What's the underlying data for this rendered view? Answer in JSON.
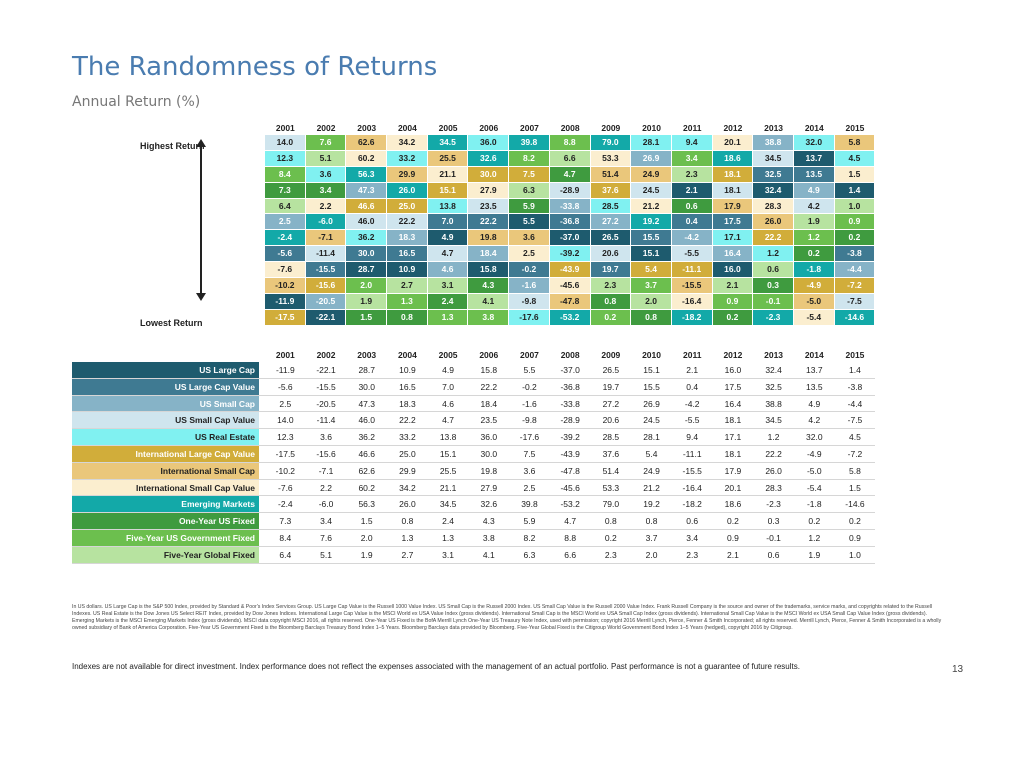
{
  "title": "The Randomness of Returns",
  "subtitle": "Annual Return (%)",
  "years": [
    "2001",
    "2002",
    "2003",
    "2004",
    "2005",
    "2006",
    "2007",
    "2008",
    "2009",
    "2010",
    "2011",
    "2012",
    "2013",
    "2014",
    "2015"
  ],
  "highest_label": "Highest Return",
  "lowest_label": "Lowest Return",
  "assets": [
    {
      "key": "usl",
      "name": "US Large Cap",
      "color": "#1e5b6e",
      "text": "#ffffff",
      "values": [
        "-11.9",
        "-22.1",
        "28.7",
        "10.9",
        "4.9",
        "15.8",
        "5.5",
        "-37.0",
        "26.5",
        "15.1",
        "2.1",
        "16.0",
        "32.4",
        "13.7",
        "1.4"
      ]
    },
    {
      "key": "uslv",
      "name": "US Large Cap Value",
      "color": "#3f7a92",
      "text": "#ffffff",
      "values": [
        "-5.6",
        "-15.5",
        "30.0",
        "16.5",
        "7.0",
        "22.2",
        "-0.2",
        "-36.8",
        "19.7",
        "15.5",
        "0.4",
        "17.5",
        "32.5",
        "13.5",
        "-3.8"
      ]
    },
    {
      "key": "uss",
      "name": "US Small Cap",
      "color": "#86b3c7",
      "text": "#ffffff",
      "values": [
        "2.5",
        "-20.5",
        "47.3",
        "18.3",
        "4.6",
        "18.4",
        "-1.6",
        "-33.8",
        "27.2",
        "26.9",
        "-4.2",
        "16.4",
        "38.8",
        "4.9",
        "-4.4"
      ]
    },
    {
      "key": "ussv",
      "name": "US Small Cap Value",
      "color": "#cfe5ee",
      "text": "#222222",
      "values": [
        "14.0",
        "-11.4",
        "46.0",
        "22.2",
        "4.7",
        "23.5",
        "-9.8",
        "-28.9",
        "20.6",
        "24.5",
        "-5.5",
        "18.1",
        "34.5",
        "4.2",
        "-7.5"
      ]
    },
    {
      "key": "usre",
      "name": "US Real Estate",
      "color": "#80f1f1",
      "text": "#222222",
      "values": [
        "12.3",
        "3.6",
        "36.2",
        "33.2",
        "13.8",
        "36.0",
        "-17.6",
        "-39.2",
        "28.5",
        "28.1",
        "9.4",
        "17.1",
        "1.2",
        "32.0",
        "4.5"
      ]
    },
    {
      "key": "ilv",
      "name": "International Large Cap Value",
      "color": "#d1ad3a",
      "text": "#ffffff",
      "values": [
        "-17.5",
        "-15.6",
        "46.6",
        "25.0",
        "15.1",
        "30.0",
        "7.5",
        "-43.9",
        "37.6",
        "5.4",
        "-11.1",
        "18.1",
        "22.2",
        "-4.9",
        "-7.2"
      ]
    },
    {
      "key": "is",
      "name": "International Small Cap",
      "color": "#eac77b",
      "text": "#222222",
      "values": [
        "-10.2",
        "-7.1",
        "62.6",
        "29.9",
        "25.5",
        "19.8",
        "3.6",
        "-47.8",
        "51.4",
        "24.9",
        "-15.5",
        "17.9",
        "26.0",
        "-5.0",
        "5.8"
      ]
    },
    {
      "key": "isv",
      "name": "International Small Cap Value",
      "color": "#fbeecf",
      "text": "#222222",
      "values": [
        "-7.6",
        "2.2",
        "60.2",
        "34.2",
        "21.1",
        "27.9",
        "2.5",
        "-45.6",
        "53.3",
        "21.2",
        "-16.4",
        "20.1",
        "28.3",
        "-5.4",
        "1.5"
      ]
    },
    {
      "key": "em",
      "name": "Emerging Markets",
      "color": "#13a9a8",
      "text": "#ffffff",
      "values": [
        "-2.4",
        "-6.0",
        "56.3",
        "26.0",
        "34.5",
        "32.6",
        "39.8",
        "-53.2",
        "79.0",
        "19.2",
        "-18.2",
        "18.6",
        "-2.3",
        "-1.8",
        "-14.6"
      ]
    },
    {
      "key": "oyf",
      "name": "One-Year US Fixed",
      "color": "#3f9b3f",
      "text": "#ffffff",
      "values": [
        "7.3",
        "3.4",
        "1.5",
        "0.8",
        "2.4",
        "4.3",
        "5.9",
        "4.7",
        "0.8",
        "0.8",
        "0.6",
        "0.2",
        "0.3",
        "0.2",
        "0.2"
      ]
    },
    {
      "key": "fyg",
      "name": "Five-Year US Government Fixed",
      "color": "#6cbf4e",
      "text": "#ffffff",
      "values": [
        "8.4",
        "7.6",
        "2.0",
        "1.3",
        "1.3",
        "3.8",
        "8.2",
        "8.8",
        "0.2",
        "3.7",
        "3.4",
        "0.9",
        "-0.1",
        "1.2",
        "0.9"
      ]
    },
    {
      "key": "fyglob",
      "name": "Five-Year Global Fixed",
      "color": "#b7e3a0",
      "text": "#222222",
      "values": [
        "6.4",
        "5.1",
        "1.9",
        "2.7",
        "3.1",
        "4.1",
        "6.3",
        "6.6",
        "2.3",
        "2.0",
        "2.3",
        "2.1",
        "0.6",
        "1.9",
        "1.0"
      ]
    }
  ],
  "quilt": [
    [
      {
        "v": "14.0",
        "a": "ussv"
      },
      {
        "v": "7.6",
        "a": "fyg"
      },
      {
        "v": "62.6",
        "a": "is"
      },
      {
        "v": "34.2",
        "a": "isv"
      },
      {
        "v": "34.5",
        "a": "em"
      },
      {
        "v": "36.0",
        "a": "usre"
      },
      {
        "v": "39.8",
        "a": "em"
      },
      {
        "v": "8.8",
        "a": "fyg"
      },
      {
        "v": "79.0",
        "a": "em"
      },
      {
        "v": "28.1",
        "a": "usre"
      },
      {
        "v": "9.4",
        "a": "usre"
      },
      {
        "v": "20.1",
        "a": "isv"
      },
      {
        "v": "38.8",
        "a": "uss"
      },
      {
        "v": "32.0",
        "a": "usre"
      },
      {
        "v": "5.8",
        "a": "is"
      }
    ],
    [
      {
        "v": "12.3",
        "a": "usre"
      },
      {
        "v": "5.1",
        "a": "fyglob"
      },
      {
        "v": "60.2",
        "a": "isv"
      },
      {
        "v": "33.2",
        "a": "usre"
      },
      {
        "v": "25.5",
        "a": "is"
      },
      {
        "v": "32.6",
        "a": "em"
      },
      {
        "v": "8.2",
        "a": "fyg"
      },
      {
        "v": "6.6",
        "a": "fyglob"
      },
      {
        "v": "53.3",
        "a": "isv"
      },
      {
        "v": "26.9",
        "a": "uss"
      },
      {
        "v": "3.4",
        "a": "fyg"
      },
      {
        "v": "18.6",
        "a": "em"
      },
      {
        "v": "34.5",
        "a": "ussv"
      },
      {
        "v": "13.7",
        "a": "usl"
      },
      {
        "v": "4.5",
        "a": "usre"
      }
    ],
    [
      {
        "v": "8.4",
        "a": "fyg"
      },
      {
        "v": "3.6",
        "a": "usre"
      },
      {
        "v": "56.3",
        "a": "em"
      },
      {
        "v": "29.9",
        "a": "is"
      },
      {
        "v": "21.1",
        "a": "isv"
      },
      {
        "v": "30.0",
        "a": "ilv"
      },
      {
        "v": "7.5",
        "a": "ilv"
      },
      {
        "v": "4.7",
        "a": "oyf"
      },
      {
        "v": "51.4",
        "a": "is"
      },
      {
        "v": "24.9",
        "a": "is"
      },
      {
        "v": "2.3",
        "a": "fyglob"
      },
      {
        "v": "18.1",
        "a": "ilv"
      },
      {
        "v": "32.5",
        "a": "uslv"
      },
      {
        "v": "13.5",
        "a": "uslv"
      },
      {
        "v": "1.5",
        "a": "isv"
      }
    ],
    [
      {
        "v": "7.3",
        "a": "oyf"
      },
      {
        "v": "3.4",
        "a": "oyf"
      },
      {
        "v": "47.3",
        "a": "uss"
      },
      {
        "v": "26.0",
        "a": "em"
      },
      {
        "v": "15.1",
        "a": "ilv"
      },
      {
        "v": "27.9",
        "a": "isv"
      },
      {
        "v": "6.3",
        "a": "fyglob"
      },
      {
        "v": "-28.9",
        "a": "ussv"
      },
      {
        "v": "37.6",
        "a": "ilv"
      },
      {
        "v": "24.5",
        "a": "ussv"
      },
      {
        "v": "2.1",
        "a": "usl"
      },
      {
        "v": "18.1",
        "a": "ussv"
      },
      {
        "v": "32.4",
        "a": "usl"
      },
      {
        "v": "4.9",
        "a": "uss"
      },
      {
        "v": "1.4",
        "a": "usl"
      }
    ],
    [
      {
        "v": "6.4",
        "a": "fyglob"
      },
      {
        "v": "2.2",
        "a": "isv"
      },
      {
        "v": "46.6",
        "a": "ilv"
      },
      {
        "v": "25.0",
        "a": "ilv"
      },
      {
        "v": "13.8",
        "a": "usre"
      },
      {
        "v": "23.5",
        "a": "ussv"
      },
      {
        "v": "5.9",
        "a": "oyf"
      },
      {
        "v": "-33.8",
        "a": "uss"
      },
      {
        "v": "28.5",
        "a": "usre"
      },
      {
        "v": "21.2",
        "a": "isv"
      },
      {
        "v": "0.6",
        "a": "oyf"
      },
      {
        "v": "17.9",
        "a": "is"
      },
      {
        "v": "28.3",
        "a": "isv"
      },
      {
        "v": "4.2",
        "a": "ussv"
      },
      {
        "v": "1.0",
        "a": "fyglob"
      }
    ],
    [
      {
        "v": "2.5",
        "a": "uss"
      },
      {
        "v": "-6.0",
        "a": "em"
      },
      {
        "v": "46.0",
        "a": "ussv"
      },
      {
        "v": "22.2",
        "a": "ussv"
      },
      {
        "v": "7.0",
        "a": "uslv"
      },
      {
        "v": "22.2",
        "a": "uslv"
      },
      {
        "v": "5.5",
        "a": "usl"
      },
      {
        "v": "-36.8",
        "a": "uslv"
      },
      {
        "v": "27.2",
        "a": "uss"
      },
      {
        "v": "19.2",
        "a": "em"
      },
      {
        "v": "0.4",
        "a": "uslv"
      },
      {
        "v": "17.5",
        "a": "uslv"
      },
      {
        "v": "26.0",
        "a": "is"
      },
      {
        "v": "1.9",
        "a": "fyglob"
      },
      {
        "v": "0.9",
        "a": "fyg"
      }
    ],
    [
      {
        "v": "-2.4",
        "a": "em"
      },
      {
        "v": "-7.1",
        "a": "is"
      },
      {
        "v": "36.2",
        "a": "usre"
      },
      {
        "v": "18.3",
        "a": "uss"
      },
      {
        "v": "4.9",
        "a": "usl"
      },
      {
        "v": "19.8",
        "a": "is"
      },
      {
        "v": "3.6",
        "a": "is"
      },
      {
        "v": "-37.0",
        "a": "usl"
      },
      {
        "v": "26.5",
        "a": "usl"
      },
      {
        "v": "15.5",
        "a": "uslv"
      },
      {
        "v": "-4.2",
        "a": "uss"
      },
      {
        "v": "17.1",
        "a": "usre"
      },
      {
        "v": "22.2",
        "a": "ilv"
      },
      {
        "v": "1.2",
        "a": "fyg"
      },
      {
        "v": "0.2",
        "a": "oyf"
      }
    ],
    [
      {
        "v": "-5.6",
        "a": "uslv"
      },
      {
        "v": "-11.4",
        "a": "ussv"
      },
      {
        "v": "30.0",
        "a": "uslv"
      },
      {
        "v": "16.5",
        "a": "uslv"
      },
      {
        "v": "4.7",
        "a": "ussv"
      },
      {
        "v": "18.4",
        "a": "uss"
      },
      {
        "v": "2.5",
        "a": "isv"
      },
      {
        "v": "-39.2",
        "a": "usre"
      },
      {
        "v": "20.6",
        "a": "ussv"
      },
      {
        "v": "15.1",
        "a": "usl"
      },
      {
        "v": "-5.5",
        "a": "ussv"
      },
      {
        "v": "16.4",
        "a": "uss"
      },
      {
        "v": "1.2",
        "a": "usre"
      },
      {
        "v": "0.2",
        "a": "oyf"
      },
      {
        "v": "-3.8",
        "a": "uslv"
      }
    ],
    [
      {
        "v": "-7.6",
        "a": "isv"
      },
      {
        "v": "-15.5",
        "a": "uslv"
      },
      {
        "v": "28.7",
        "a": "usl"
      },
      {
        "v": "10.9",
        "a": "usl"
      },
      {
        "v": "4.6",
        "a": "uss"
      },
      {
        "v": "15.8",
        "a": "usl"
      },
      {
        "v": "-0.2",
        "a": "uslv"
      },
      {
        "v": "-43.9",
        "a": "ilv"
      },
      {
        "v": "19.7",
        "a": "uslv"
      },
      {
        "v": "5.4",
        "a": "ilv"
      },
      {
        "v": "-11.1",
        "a": "ilv"
      },
      {
        "v": "16.0",
        "a": "usl"
      },
      {
        "v": "0.6",
        "a": "fyglob"
      },
      {
        "v": "-1.8",
        "a": "em"
      },
      {
        "v": "-4.4",
        "a": "uss"
      }
    ],
    [
      {
        "v": "-10.2",
        "a": "is"
      },
      {
        "v": "-15.6",
        "a": "ilv"
      },
      {
        "v": "2.0",
        "a": "fyg"
      },
      {
        "v": "2.7",
        "a": "fyglob"
      },
      {
        "v": "3.1",
        "a": "fyglob"
      },
      {
        "v": "4.3",
        "a": "oyf"
      },
      {
        "v": "-1.6",
        "a": "uss"
      },
      {
        "v": "-45.6",
        "a": "isv"
      },
      {
        "v": "2.3",
        "a": "fyglob"
      },
      {
        "v": "3.7",
        "a": "fyg"
      },
      {
        "v": "-15.5",
        "a": "is"
      },
      {
        "v": "2.1",
        "a": "fyglob"
      },
      {
        "v": "0.3",
        "a": "oyf"
      },
      {
        "v": "-4.9",
        "a": "ilv"
      },
      {
        "v": "-7.2",
        "a": "ilv"
      }
    ],
    [
      {
        "v": "-11.9",
        "a": "usl"
      },
      {
        "v": "-20.5",
        "a": "uss"
      },
      {
        "v": "1.9",
        "a": "fyglob"
      },
      {
        "v": "1.3",
        "a": "fyg"
      },
      {
        "v": "2.4",
        "a": "oyf"
      },
      {
        "v": "4.1",
        "a": "fyglob"
      },
      {
        "v": "-9.8",
        "a": "ussv"
      },
      {
        "v": "-47.8",
        "a": "is"
      },
      {
        "v": "0.8",
        "a": "oyf"
      },
      {
        "v": "2.0",
        "a": "fyglob"
      },
      {
        "v": "-16.4",
        "a": "isv"
      },
      {
        "v": "0.9",
        "a": "fyg"
      },
      {
        "v": "-0.1",
        "a": "fyg"
      },
      {
        "v": "-5.0",
        "a": "is"
      },
      {
        "v": "-7.5",
        "a": "ussv"
      }
    ],
    [
      {
        "v": "-17.5",
        "a": "ilv"
      },
      {
        "v": "-22.1",
        "a": "usl"
      },
      {
        "v": "1.5",
        "a": "oyf"
      },
      {
        "v": "0.8",
        "a": "oyf"
      },
      {
        "v": "1.3",
        "a": "fyg"
      },
      {
        "v": "3.8",
        "a": "fyg"
      },
      {
        "v": "-17.6",
        "a": "usre"
      },
      {
        "v": "-53.2",
        "a": "em"
      },
      {
        "v": "0.2",
        "a": "fyg"
      },
      {
        "v": "0.8",
        "a": "oyf"
      },
      {
        "v": "-18.2",
        "a": "em"
      },
      {
        "v": "0.2",
        "a": "oyf"
      },
      {
        "v": "-2.3",
        "a": "em"
      },
      {
        "v": "-5.4",
        "a": "isv"
      },
      {
        "v": "-14.6",
        "a": "em"
      }
    ]
  ],
  "footnote": "In US dollars. US Large Cap is the S&P 500 Index, provided by Standard & Poor's Index Services Group. US Large Cap Value is the Russell 1000 Value Index. US Small Cap is the Russell 2000 Index. US Small Cap Value is the Russell 2000 Value Index. Frank Russell Company is the source and owner of the trademarks, service marks, and copyrights related to the Russell Indexes. US Real Estate is the Dow Jones US Select REIT Index, provided by Dow Jones Indices. International Large Cap Value is the MSCI World ex USA Value Index (gross dividends). International Small Cap is the MSCI World ex USA Small Cap Index (gross dividends). International Small Cap Value is the MSCI World ex USA Small Cap Value Index (gross dividends). Emerging Markets is the MSCI Emerging Markets Index (gross dividends). MSCI data copyright MSCI 2016, all rights reserved. One-Year US Fixed is the BofA Merrill Lynch One-Year US Treasury Note Index, used with permission; copyright 2016 Merrill Lynch, Pierce, Fenner & Smith Incorporated; all rights reserved. Merrill Lynch, Pierce, Fenner & Smith Incorporated is a wholly owned subsidiary of Bank of America Corporation. Five-Year US Government Fixed is the Bloomberg Barclays Treasury Bond Index 1–5 Years. Bloomberg Barclays data provided by Bloomberg. Five-Year Global Fixed is the Citigroup World Government Bond Index 1–5 Years (hedged), copyright 2016 by Citigroup.",
  "disclaimer": "Indexes are not available for direct investment. Index performance does not reflect the expenses associated with the management of an actual portfolio. Past performance is not a guarantee of future results.",
  "page_number": "13"
}
